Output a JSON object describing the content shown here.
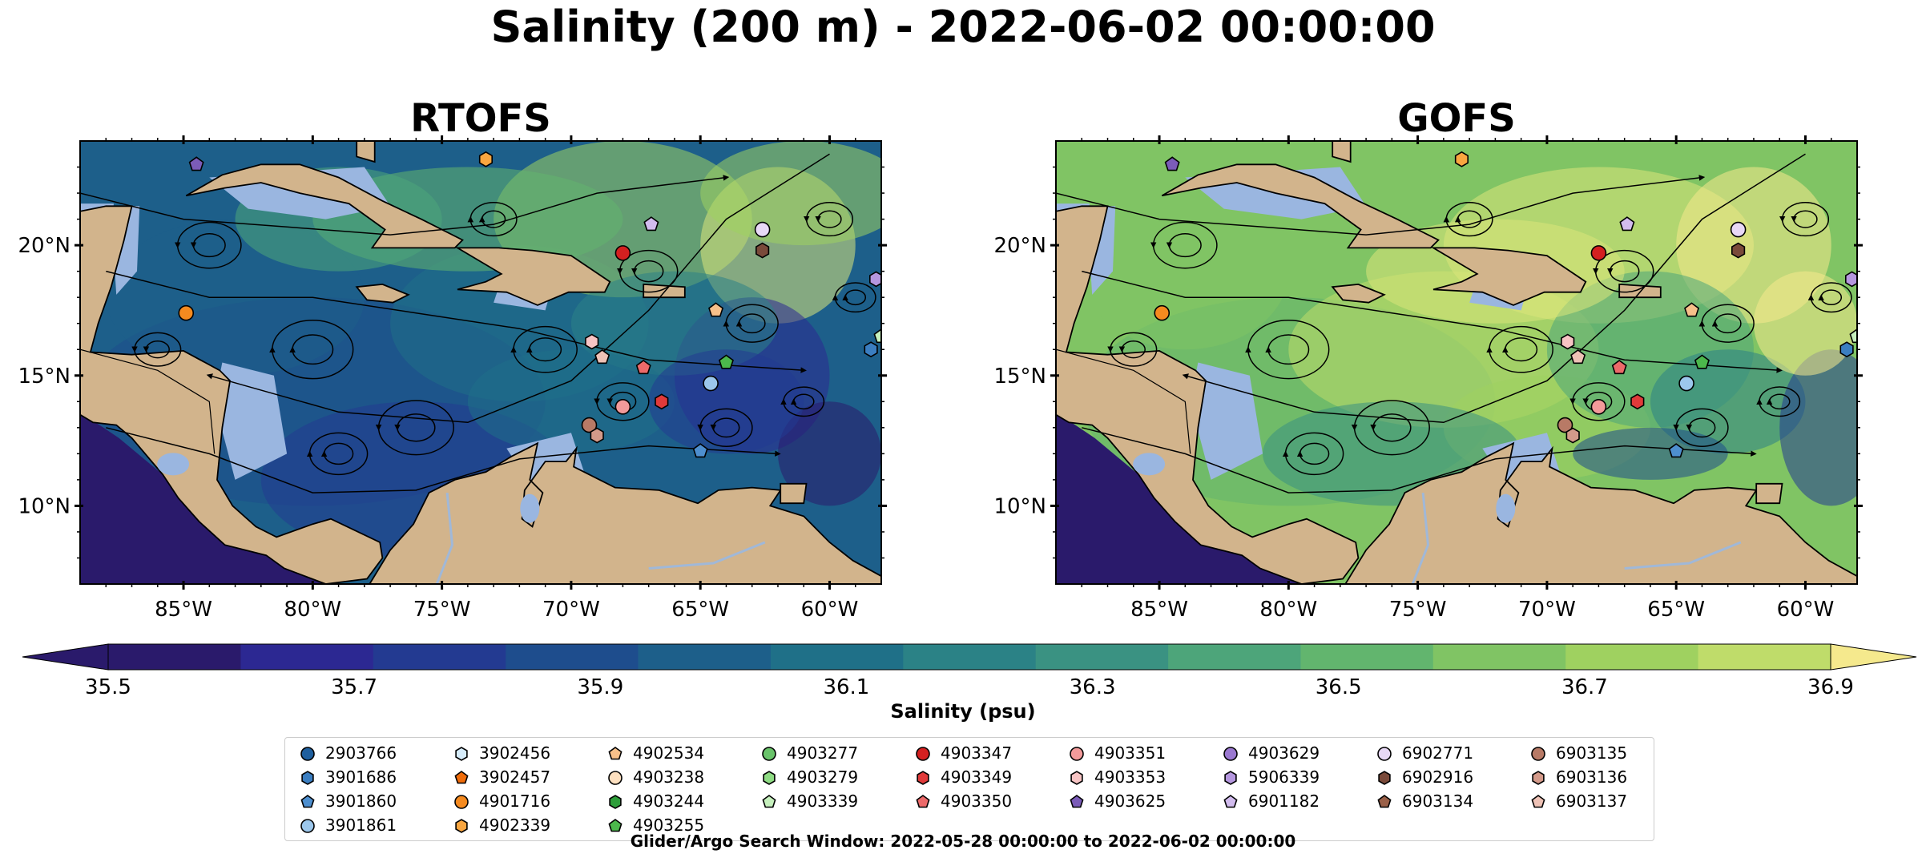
{
  "title": "Salinity (200 m) - 2022-06-02 00:00:00",
  "colors": {
    "land": "#d2b48c",
    "shelf": "#9ab6e0",
    "coast": "#000000",
    "rivers": "#a0b8d8",
    "colormap": [
      "#2a1a6b",
      "#2c2892",
      "#233a91",
      "#1e4d8d",
      "#1d5f8a",
      "#1f7088",
      "#2b8286",
      "#3a9282",
      "#4da57a",
      "#62b56e",
      "#80c464",
      "#9fd160",
      "#bfdc6a",
      "#dbe57a",
      "#f5e98d"
    ]
  },
  "chart_data": [
    {
      "type": "heatmap",
      "title": "RTOFS",
      "x_ticks": [
        "85°W",
        "80°W",
        "75°W",
        "70°W",
        "65°W",
        "60°W"
      ],
      "x_tick_values": [
        -85,
        -80,
        -75,
        -70,
        -65,
        -60
      ],
      "y_ticks": [
        "20°N",
        "15°N",
        "10°N"
      ],
      "y_tick_values": [
        20,
        15,
        10
      ],
      "xlim": [
        -89,
        -58
      ],
      "ylim": [
        7,
        24
      ],
      "field_note": "salinity at 200 m with velocity streamlines",
      "salinity_regime": "low"
    },
    {
      "type": "heatmap",
      "title": "GOFS",
      "x_ticks": [
        "85°W",
        "80°W",
        "75°W",
        "70°W",
        "65°W",
        "60°W"
      ],
      "x_tick_values": [
        -85,
        -80,
        -75,
        -70,
        -65,
        -60
      ],
      "y_ticks": [
        "20°N",
        "15°N",
        "10°N"
      ],
      "y_tick_values": [
        20,
        15,
        10
      ],
      "xlim": [
        -89,
        -58
      ],
      "ylim": [
        7,
        24
      ],
      "field_note": "salinity at 200 m with velocity streamlines",
      "salinity_regime": "high"
    }
  ],
  "colorbar": {
    "label": "Salinity (psu)",
    "ticks": [
      "35.5",
      "35.7",
      "35.9",
      "36.1",
      "36.3",
      "36.5",
      "36.7",
      "36.9"
    ],
    "min": 35.5,
    "max": 36.9,
    "extend": "both"
  },
  "legend": {
    "columns": [
      [
        {
          "id": "2903766",
          "marker": "circle",
          "color": "#1f5f9e"
        },
        {
          "id": "3901686",
          "marker": "hexagon",
          "color": "#3b7ec1"
        },
        {
          "id": "3901860",
          "marker": "pentagon",
          "color": "#4e8fcf"
        },
        {
          "id": "3901861",
          "marker": "circle",
          "color": "#9cc7ec"
        }
      ],
      [
        {
          "id": "3902456",
          "marker": "hexagon",
          "color": "#d6ecfa"
        },
        {
          "id": "3902457",
          "marker": "pentagon",
          "color": "#ef6c0a"
        },
        {
          "id": "4901716",
          "marker": "circle",
          "color": "#f58a1f"
        },
        {
          "id": "4902339",
          "marker": "hexagon",
          "color": "#f9a640"
        }
      ],
      [
        {
          "id": "4902534",
          "marker": "pentagon",
          "color": "#f7c08a"
        },
        {
          "id": "4903238",
          "marker": "circle",
          "color": "#fde0c0"
        },
        {
          "id": "4903244",
          "marker": "hexagon",
          "color": "#2e9e3a"
        },
        {
          "id": "4903255",
          "marker": "pentagon",
          "color": "#4cb84c"
        }
      ],
      [
        {
          "id": "4903277",
          "marker": "circle",
          "color": "#69c36a"
        },
        {
          "id": "4903279",
          "marker": "hexagon",
          "color": "#8fdc84"
        },
        {
          "id": "4903339",
          "marker": "pentagon",
          "color": "#c6f0bd"
        }
      ],
      [
        {
          "id": "4903347",
          "marker": "circle",
          "color": "#d42020"
        },
        {
          "id": "4903349",
          "marker": "hexagon",
          "color": "#e03a3a"
        },
        {
          "id": "4903350",
          "marker": "pentagon",
          "color": "#ec6a6a"
        }
      ],
      [
        {
          "id": "4903351",
          "marker": "circle",
          "color": "#f29a9a"
        },
        {
          "id": "4903353",
          "marker": "hexagon",
          "color": "#f7c4c4"
        },
        {
          "id": "4903625",
          "marker": "pentagon",
          "color": "#7b5cb8"
        }
      ],
      [
        {
          "id": "4903629",
          "marker": "circle",
          "color": "#9a78d0"
        },
        {
          "id": "5906339",
          "marker": "hexagon",
          "color": "#b597df"
        },
        {
          "id": "6901182",
          "marker": "pentagon",
          "color": "#d2bcee"
        }
      ],
      [
        {
          "id": "6902771",
          "marker": "circle",
          "color": "#e8d8f6"
        },
        {
          "id": "6902916",
          "marker": "hexagon",
          "color": "#7a4a3a"
        },
        {
          "id": "6903134",
          "marker": "pentagon",
          "color": "#9a6048"
        }
      ],
      [
        {
          "id": "6903135",
          "marker": "circle",
          "color": "#b87a66"
        },
        {
          "id": "6903136",
          "marker": "hexagon",
          "color": "#d49a8a"
        },
        {
          "id": "6903137",
          "marker": "pentagon",
          "color": "#eec2b6"
        }
      ]
    ]
  },
  "floats": [
    {
      "lon": -84.5,
      "lat": 23.1,
      "marker": "pentagon",
      "color": "#7b5cb8"
    },
    {
      "lon": -73.3,
      "lat": 23.3,
      "marker": "hexagon",
      "color": "#f9a640"
    },
    {
      "lon": -68.0,
      "lat": 19.7,
      "marker": "circle",
      "color": "#d42020"
    },
    {
      "lon": -66.9,
      "lat": 20.8,
      "marker": "pentagon",
      "color": "#d2bcee"
    },
    {
      "lon": -62.6,
      "lat": 20.6,
      "marker": "circle",
      "color": "#e8d8f6"
    },
    {
      "lon": -62.6,
      "lat": 19.8,
      "marker": "hexagon",
      "color": "#7a4a3a"
    },
    {
      "lon": -58.2,
      "lat": 18.7,
      "marker": "hexagon",
      "color": "#b597df"
    },
    {
      "lon": -84.9,
      "lat": 17.4,
      "marker": "circle",
      "color": "#f58a1f"
    },
    {
      "lon": -64.4,
      "lat": 17.5,
      "marker": "pentagon",
      "color": "#f7c08a"
    },
    {
      "lon": -69.2,
      "lat": 16.3,
      "marker": "hexagon",
      "color": "#f7c4c4"
    },
    {
      "lon": -68.8,
      "lat": 15.7,
      "marker": "pentagon",
      "color": "#eec2b6"
    },
    {
      "lon": -67.2,
      "lat": 15.3,
      "marker": "pentagon",
      "color": "#ec6a6a"
    },
    {
      "lon": -58.0,
      "lat": 16.5,
      "marker": "pentagon",
      "color": "#c6f0bd"
    },
    {
      "lon": -58.4,
      "lat": 16.0,
      "marker": "hexagon",
      "color": "#3b7ec1"
    },
    {
      "lon": -64.6,
      "lat": 14.7,
      "marker": "circle",
      "color": "#9cc7ec"
    },
    {
      "lon": -68.0,
      "lat": 13.8,
      "marker": "circle",
      "color": "#f29a9a"
    },
    {
      "lon": -66.5,
      "lat": 14.0,
      "marker": "hexagon",
      "color": "#e03a3a"
    },
    {
      "lon": -69.3,
      "lat": 13.1,
      "marker": "circle",
      "color": "#b87a66"
    },
    {
      "lon": -69.0,
      "lat": 12.7,
      "marker": "hexagon",
      "color": "#d49a8a"
    },
    {
      "lon": -65.0,
      "lat": 12.1,
      "marker": "pentagon",
      "color": "#4e8fcf"
    },
    {
      "lon": -64.0,
      "lat": 15.5,
      "marker": "pentagon",
      "color": "#4cb84c"
    }
  ],
  "search_window": "Glider/Argo Search Window: 2022-05-28 00:00:00 to 2022-06-02 00:00:00"
}
